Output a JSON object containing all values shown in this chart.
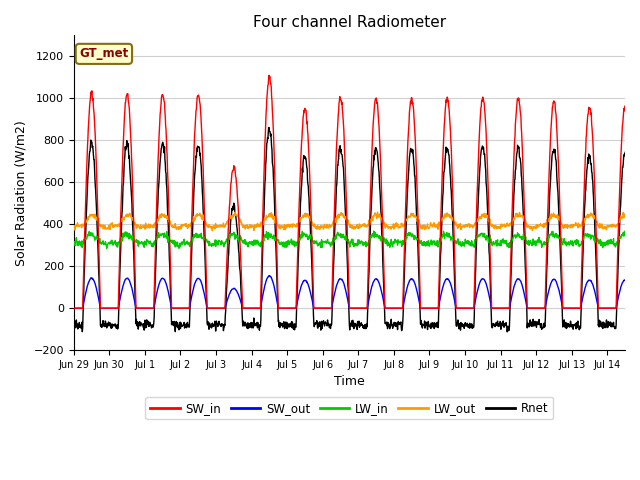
{
  "title": "Four channel Radiometer",
  "xlabel": "Time",
  "ylabel": "Solar Radiation (W/m2)",
  "ylim": [
    -200,
    1300
  ],
  "yticks": [
    -200,
    0,
    200,
    400,
    600,
    800,
    1000,
    1200
  ],
  "colors": {
    "SW_in": "#ff0000",
    "SW_out": "#0000ff",
    "LW_in": "#00cc00",
    "LW_out": "#ff9900",
    "Rnet": "#000000"
  },
  "legend_labels": [
    "SW_in",
    "SW_out",
    "LW_in",
    "LW_out",
    "Rnet"
  ],
  "annotation_text": "GT_met",
  "annotation_color": "#8B0000",
  "annotation_bg": "#ffffcc",
  "annotation_edge": "#8B6914",
  "bg_color": "#ffffff",
  "grid_color": "#d0d0d0",
  "line_width": 1.0,
  "figsize": [
    6.4,
    4.8
  ],
  "dpi": 100,
  "SW_in_peaks": [
    1020,
    1020,
    1020,
    1020,
    670,
    1100,
    950,
    1000,
    1000,
    1000,
    1000,
    1000,
    1000,
    980,
    960,
    960
  ],
  "SW_out_ratio": 0.14,
  "LW_in_base": 310,
  "LW_in_day_amp": 40,
  "LW_out_base": 390,
  "LW_out_day_amp": 55,
  "Rnet_night": -90,
  "xlim": [
    0,
    15.5
  ]
}
